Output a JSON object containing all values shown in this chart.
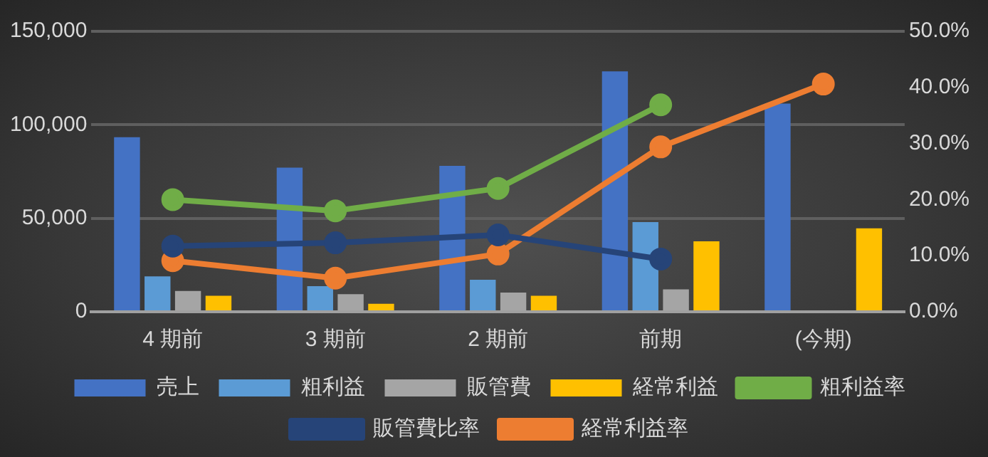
{
  "chart_data": {
    "type": "bar",
    "categories": [
      "4 期前",
      "3 期前",
      "2 期前",
      "前期",
      "(今期)"
    ],
    "series": [
      {
        "name": "売上",
        "color": "#4472c4",
        "values": [
          93400,
          77100,
          78000,
          128600,
          111400
        ]
      },
      {
        "name": "粗利益",
        "color": "#5b9bd5",
        "values": [
          18900,
          13700,
          17100,
          48000,
          null
        ]
      },
      {
        "name": "販管費",
        "color": "#a5a5a5",
        "values": [
          11100,
          9400,
          10300,
          12000,
          null
        ]
      },
      {
        "name": "経常利益",
        "color": "#ffc000",
        "values": [
          8600,
          4300,
          8600,
          37700,
          44600
        ]
      },
      {
        "name": "粗利益率",
        "type": "line",
        "axis": "y2",
        "color": "#70ad47",
        "values": [
          20.0,
          18.0,
          22.0,
          36.9,
          null
        ]
      },
      {
        "name": "販管費比率",
        "type": "line",
        "axis": "y2",
        "color": "#264478",
        "values": [
          11.7,
          12.3,
          13.7,
          9.4,
          null
        ]
      },
      {
        "name": "経常利益率",
        "type": "line",
        "axis": "y2",
        "color": "#ed7d31",
        "values": [
          9.1,
          6.0,
          10.3,
          29.4,
          40.6
        ]
      }
    ],
    "ylim": [
      0,
      150000
    ],
    "yticks": [
      0,
      {
        "value": 50000,
        "label": "50,000"
      },
      {
        "value": 100000,
        "label": "100,000"
      },
      {
        "value": 150000,
        "label": "150,000"
      }
    ],
    "y2lim": [
      0,
      50
    ],
    "y2ticks": [
      {
        "value": 0,
        "label": "0.0%"
      },
      {
        "value": 10,
        "label": "10.0%"
      },
      {
        "value": 20,
        "label": "20.0%"
      },
      {
        "value": 30,
        "label": "30.0%"
      },
      {
        "value": 40,
        "label": "40.0%"
      },
      {
        "value": 50,
        "label": "50.0%"
      }
    ],
    "grid": "y",
    "legend": "bottom",
    "marker": "circle",
    "line_style": "solid"
  }
}
